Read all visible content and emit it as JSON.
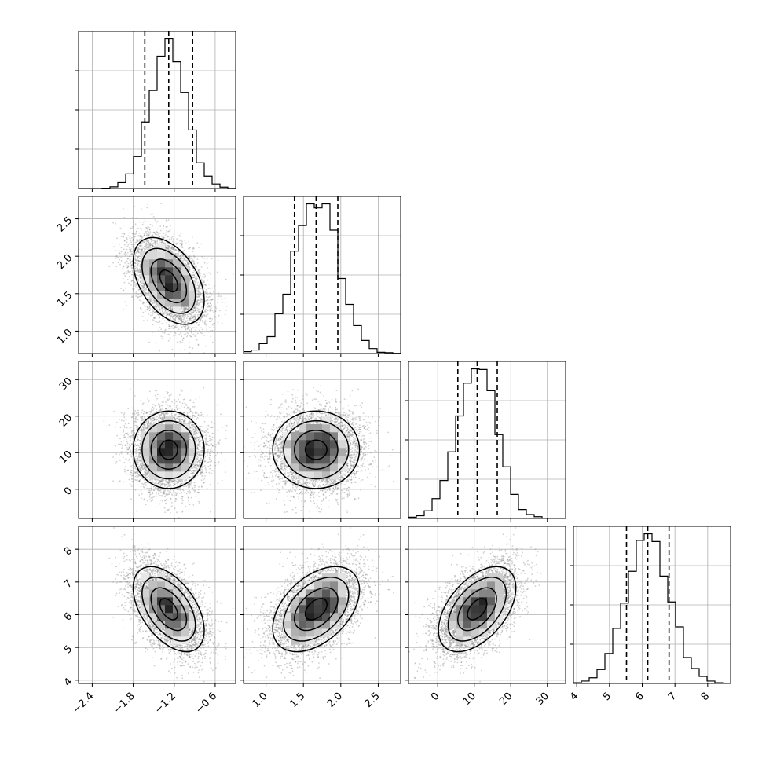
{
  "chart_data": {
    "type": "corner",
    "grid": true,
    "variables": [
      {
        "range": [
          -2.6,
          -0.3
        ],
        "ticks": [
          -2.4,
          -1.8,
          -1.2,
          -0.6
        ],
        "tick_labels": [
          "−2.4",
          "−1.8",
          "−1.2",
          "−0.6"
        ],
        "quantiles": [
          -1.63,
          -1.28,
          -0.93
        ],
        "mean": -1.28,
        "sd": 0.26,
        "hist_bins": 20
      },
      {
        "range": [
          0.7,
          2.8
        ],
        "ticks": [
          1.0,
          1.5,
          2.0,
          2.5
        ],
        "tick_labels": [
          "1.0",
          "1.5",
          "2.0",
          "2.5"
        ],
        "quantiles": [
          1.38,
          1.67,
          1.96
        ],
        "mean": 1.67,
        "sd": 0.29,
        "hist_bins": 20
      },
      {
        "range": [
          -8,
          35
        ],
        "ticks": [
          0,
          10,
          20,
          30
        ],
        "tick_labels": [
          "0",
          "10",
          "20",
          "30"
        ],
        "quantiles": [
          5.5,
          10.8,
          16.3
        ],
        "mean": 10.8,
        "sd": 5.3,
        "hist_bins": 20
      },
      {
        "range": [
          3.9,
          8.7
        ],
        "ticks": [
          4,
          5,
          6,
          7,
          8
        ],
        "tick_labels": [
          "4",
          "5",
          "6",
          "7",
          "8"
        ],
        "quantiles": [
          5.52,
          6.17,
          6.82
        ],
        "mean": 6.17,
        "sd": 0.65,
        "hist_bins": 20
      }
    ],
    "correlations": [
      [
        1.0,
        -0.45,
        0.0,
        -0.5
      ],
      [
        -0.45,
        1.0,
        0.0,
        0.45
      ],
      [
        0.0,
        0.0,
        1.0,
        0.5
      ],
      [
        -0.5,
        0.45,
        0.5,
        1.0
      ]
    ],
    "contour_levels_sigma": [
      0.5,
      1.0,
      1.5,
      2.0
    ],
    "samples": 6000
  }
}
